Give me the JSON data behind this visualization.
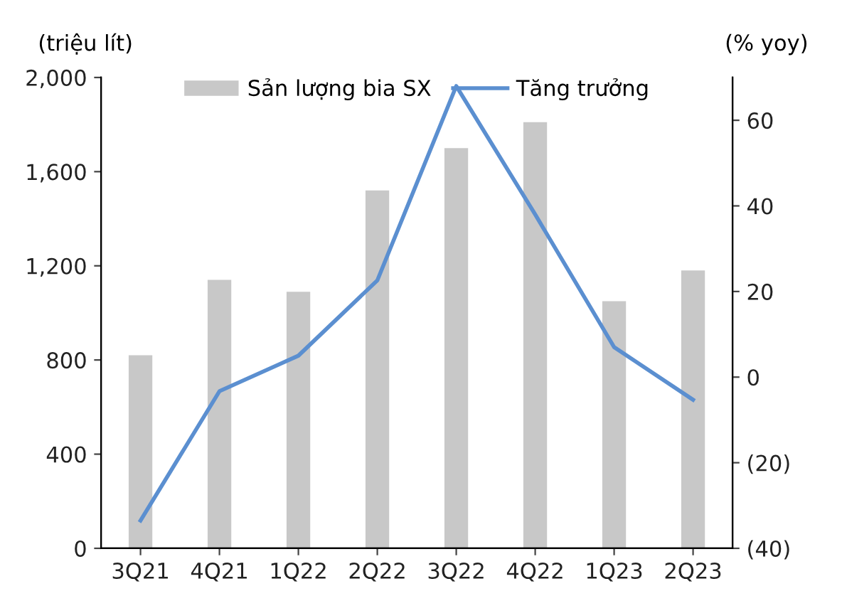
{
  "chart_data": {
    "type": "bar",
    "ylabel": "(triệu lít)",
    "y2label": "(% yoy)",
    "categories": [
      "3Q21",
      "4Q21",
      "1Q22",
      "2Q22",
      "3Q22",
      "4Q22",
      "1Q23",
      "2Q23"
    ],
    "series": [
      {
        "name": "Sản lượng bia SX",
        "color": "#c8c8c8",
        "values": [
          820,
          1140,
          1090,
          1520,
          1700,
          1810,
          1050,
          1180
        ]
      },
      {
        "name": "Tăng trưởng",
        "type": "line",
        "axis": "y2",
        "color": "#5b8fd0",
        "values": [
          -33.5,
          -3.3,
          5,
          22.6,
          68,
          38,
          7,
          -5.3
        ]
      }
    ],
    "ylim": [
      0,
      2000
    ],
    "yticks": [
      0,
      {
        "value": 400,
        "label": "400"
      },
      {
        "value": 800,
        "label": "800"
      },
      {
        "value": 1200,
        "label": "1,200"
      },
      {
        "value": 1600,
        "label": "1,600"
      },
      {
        "value": 2000,
        "label": "2,000"
      }
    ],
    "y2lim": [
      -40,
      70
    ],
    "y2ticks": [
      {
        "value": -40,
        "label": "(40)"
      },
      {
        "value": -20,
        "label": "(20)"
      },
      0,
      20,
      40,
      60
    ],
    "grid": false,
    "legend": "top"
  }
}
